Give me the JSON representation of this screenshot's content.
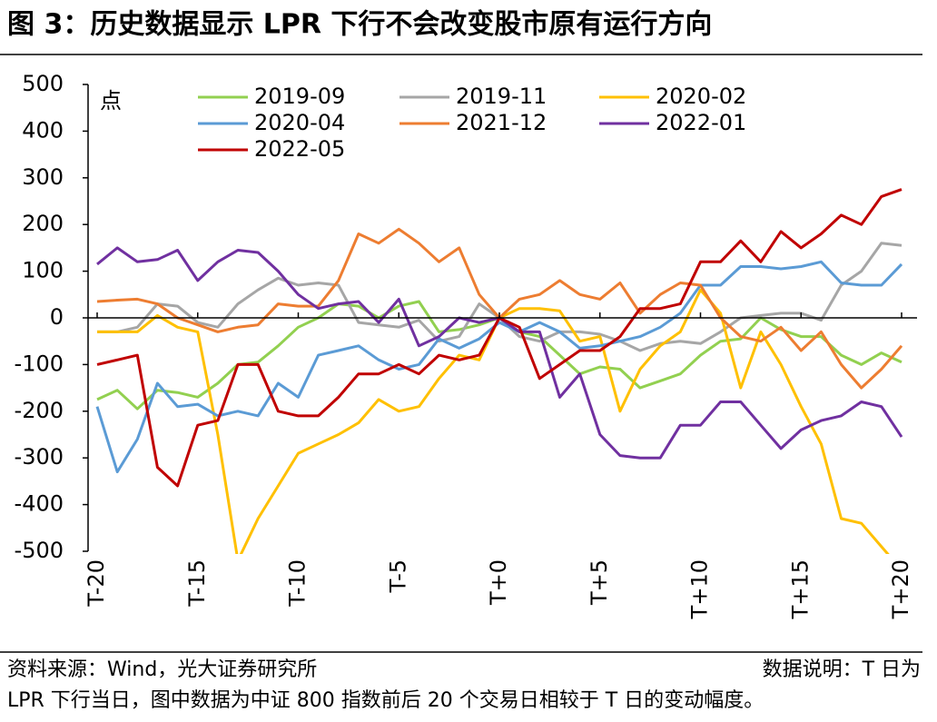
{
  "chart_data": {
    "type": "line",
    "title": "图 3：历史数据显示 LPR 下行不会改变股市原有运行方向",
    "ylabel": "点",
    "categories": [
      "T-20",
      null,
      null,
      null,
      null,
      "T-15",
      null,
      null,
      null,
      null,
      "T-10",
      null,
      null,
      null,
      null,
      "T-5",
      null,
      null,
      null,
      null,
      "T+0",
      null,
      null,
      null,
      null,
      "T+5",
      null,
      null,
      null,
      null,
      "T+10",
      null,
      null,
      null,
      null,
      "T+15",
      null,
      null,
      null,
      null,
      "T+20"
    ],
    "ylim": [
      -500,
      500
    ],
    "yticks": [
      -500,
      -400,
      -300,
      -200,
      -100,
      0,
      100,
      200,
      300,
      400,
      500
    ],
    "series": [
      {
        "name": "2019-09",
        "color": "#92d050",
        "values": [
          -175,
          -155,
          -195,
          -155,
          -160,
          -170,
          -140,
          -100,
          -95,
          -60,
          -20,
          0,
          30,
          25,
          0,
          25,
          35,
          -30,
          -25,
          -15,
          0,
          -30,
          -40,
          -80,
          -120,
          -105,
          -110,
          -150,
          -135,
          -120,
          -80,
          -50,
          -45,
          0,
          -25,
          -40,
          -40,
          -80,
          -100,
          -75,
          -95
        ]
      },
      {
        "name": "2019-11",
        "color": "#a6a6a6",
        "values": [
          -30,
          -30,
          -20,
          30,
          25,
          -10,
          -20,
          30,
          60,
          85,
          70,
          75,
          70,
          -10,
          -15,
          -20,
          -5,
          -50,
          -40,
          30,
          0,
          -40,
          -50,
          -30,
          -30,
          -35,
          -50,
          -70,
          -55,
          -50,
          -55,
          -30,
          0,
          5,
          10,
          10,
          -5,
          70,
          100,
          160,
          155
        ]
      },
      {
        "name": "2020-02",
        "color": "#ffc000",
        "values": [
          -30,
          -30,
          -30,
          5,
          -20,
          -30,
          -250,
          -520,
          -430,
          -360,
          -290,
          -270,
          -250,
          -225,
          -175,
          -200,
          -190,
          -130,
          -80,
          -90,
          0,
          20,
          20,
          15,
          -50,
          -40,
          -200,
          -110,
          -60,
          -30,
          60,
          10,
          -150,
          -30,
          -100,
          -190,
          -270,
          -430,
          -440,
          -490,
          -540
        ]
      },
      {
        "name": "2020-04",
        "color": "#5b9bd5",
        "values": [
          -190,
          -330,
          -260,
          -140,
          -190,
          -185,
          -210,
          -200,
          -210,
          -140,
          -170,
          -80,
          -70,
          -60,
          -90,
          -110,
          -100,
          -45,
          -65,
          -45,
          -10,
          -30,
          -10,
          -30,
          -65,
          -60,
          -50,
          -40,
          -20,
          10,
          70,
          70,
          110,
          110,
          105,
          110,
          120,
          75,
          70,
          70,
          115
        ]
      },
      {
        "name": "2021-12",
        "color": "#ed7d31",
        "values": [
          35,
          38,
          40,
          30,
          0,
          -15,
          -30,
          -20,
          -15,
          30,
          25,
          25,
          80,
          180,
          160,
          190,
          160,
          120,
          150,
          50,
          0,
          40,
          50,
          80,
          50,
          40,
          75,
          10,
          50,
          75,
          70,
          0,
          -40,
          -50,
          -20,
          -70,
          -30,
          -100,
          -150,
          -110,
          -60
        ]
      },
      {
        "name": "2022-01",
        "color": "#7030a0",
        "values": [
          115,
          150,
          120,
          125,
          145,
          80,
          120,
          145,
          140,
          100,
          50,
          20,
          30,
          35,
          -10,
          40,
          -60,
          -40,
          0,
          -10,
          0,
          -30,
          -30,
          -170,
          -120,
          -250,
          -295,
          -300,
          -300,
          -230,
          -230,
          -180,
          -180,
          -230,
          -280,
          -240,
          -220,
          -210,
          -180,
          -190,
          -255
        ]
      },
      {
        "name": "2022-05",
        "color": "#c00000",
        "values": [
          -100,
          -90,
          -80,
          -320,
          -360,
          -230,
          -220,
          -100,
          -100,
          -200,
          -210,
          -210,
          -170,
          -120,
          -120,
          -100,
          -120,
          -80,
          -90,
          -80,
          0,
          -20,
          -130,
          -100,
          -70,
          -70,
          -40,
          20,
          20,
          30,
          120,
          120,
          165,
          120,
          185,
          150,
          180,
          220,
          200,
          260,
          275
        ]
      }
    ],
    "source": "资料来源：Wind，光大证券研究所",
    "note_head": "数据说明：T 日为",
    "note": "LPR 下行当日，图中数据为中证 800 指数前后 20 个交易日相较于 T 日的变动幅度。"
  }
}
